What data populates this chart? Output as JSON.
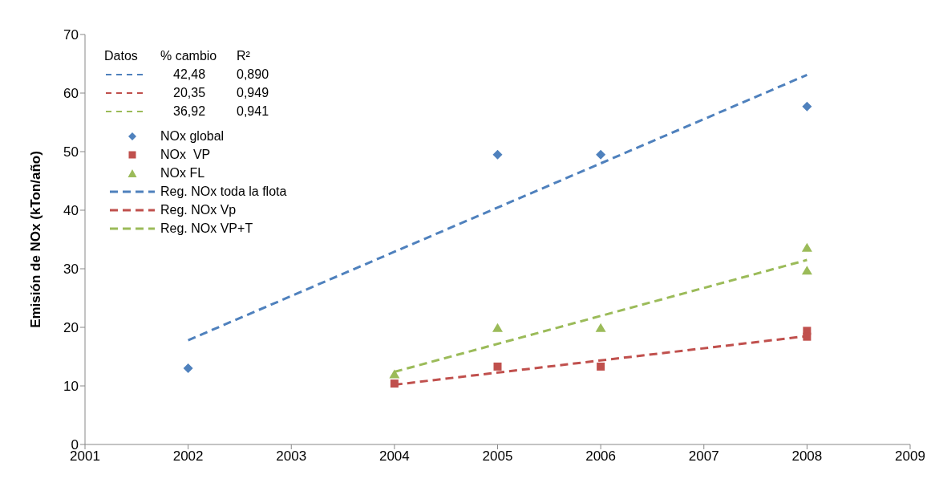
{
  "chart_data": {
    "type": "scatter",
    "ylabel": "Emisión de NOx (kTon/año)",
    "xlim": [
      2001,
      2009
    ],
    "xticks": [
      2001,
      2002,
      2003,
      2004,
      2005,
      2006,
      2007,
      2008,
      2009
    ],
    "ylim": [
      0,
      70
    ],
    "yticks": [
      0,
      10,
      20,
      30,
      40,
      50,
      60,
      70
    ],
    "legend": "top left",
    "annotations": [
      "Datos",
      "% cambio",
      "R²",
      "42,48",
      "0,890",
      "20,35",
      "0,949",
      "36,92",
      "0,941"
    ],
    "series": [
      {
        "name": "NOx global",
        "marker": "diamond",
        "color": "#4f81bd",
        "x": [
          2002,
          2005,
          2006,
          2008
        ],
        "values": [
          13.0,
          49.5,
          49.5,
          57.7
        ]
      },
      {
        "name": "NOx  VP",
        "marker": "square",
        "color": "#c0504d",
        "x": [
          2004,
          2005,
          2006,
          2008,
          2008
        ],
        "values": [
          10.4,
          13.3,
          13.3,
          19.4,
          18.4
        ]
      },
      {
        "name": "NOx FL",
        "marker": "triangle",
        "color": "#9bbb59",
        "x": [
          2004,
          2005,
          2006,
          2008,
          2008
        ],
        "values": [
          12.0,
          19.9,
          19.9,
          33.6,
          29.7
        ]
      },
      {
        "name": "Reg. NOx toda la flota",
        "type": "line",
        "marker": "none",
        "line_style": "dashed",
        "color": "#4f81bd",
        "x": [
          2002,
          2008
        ],
        "values": [
          17.8,
          63.1
        ]
      },
      {
        "name": "Reg. NOx Vp",
        "type": "line",
        "marker": "none",
        "line_style": "dashed",
        "color": "#c0504d",
        "x": [
          2004,
          2008
        ],
        "values": [
          10.2,
          18.5
        ]
      },
      {
        "name": "Reg. NOx VP+T",
        "type": "line",
        "marker": "none",
        "line_style": "dashed",
        "color": "#9bbb59",
        "x": [
          2004,
          2008
        ],
        "values": [
          12.4,
          31.5
        ]
      }
    ]
  }
}
